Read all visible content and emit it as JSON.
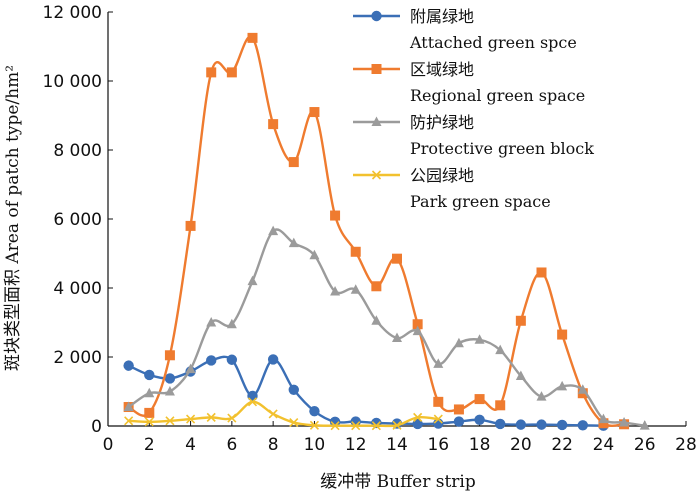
{
  "chart_data": {
    "type": "line",
    "xlabel": "缓冲带 Buffer strip",
    "ylabel": "斑块类型面积 Area of patch type/hm²",
    "xlim": [
      0,
      28
    ],
    "ylim": [
      0,
      12000
    ],
    "xticks": [
      0,
      2,
      4,
      6,
      8,
      10,
      12,
      14,
      16,
      18,
      20,
      22,
      24,
      26,
      28
    ],
    "yticks": [
      0,
      2000,
      4000,
      6000,
      8000,
      10000,
      12000
    ],
    "ytick_labels": [
      "0",
      "2 000",
      "4 000",
      "6 000",
      "8 000",
      "10 000",
      "12 000"
    ],
    "grid": false,
    "legend_position": "top-right",
    "series": [
      {
        "name_cn": "附属绿地",
        "name": "Attached green spce",
        "color": "#3b6fb6",
        "marker": "circle",
        "x": [
          1,
          2,
          3,
          4,
          5,
          6,
          7,
          8,
          9,
          10,
          11,
          12,
          13,
          14,
          15,
          16,
          17,
          18,
          19,
          20,
          21,
          22,
          23,
          24
        ],
        "values": [
          1750,
          1480,
          1380,
          1580,
          1900,
          1920,
          870,
          1930,
          1050,
          430,
          120,
          130,
          90,
          70,
          60,
          70,
          130,
          180,
          60,
          40,
          40,
          30,
          20,
          10
        ]
      },
      {
        "name_cn": "区域绿地",
        "name": "Regional green space",
        "color": "#ef7b2f",
        "marker": "square",
        "x": [
          1,
          2,
          3,
          4,
          5,
          6,
          7,
          8,
          9,
          10,
          11,
          12,
          13,
          14,
          15,
          16,
          17,
          18,
          19,
          20,
          21,
          22,
          23,
          24,
          25
        ],
        "values": [
          550,
          380,
          2050,
          5800,
          10250,
          10250,
          11250,
          8750,
          7650,
          9100,
          6100,
          5050,
          4050,
          4850,
          2950,
          700,
          480,
          780,
          600,
          3050,
          4450,
          2650,
          950,
          80,
          50
        ]
      },
      {
        "name_cn": "防护绿地",
        "name": "Protective green block",
        "color": "#9b9b9b",
        "marker": "triangle",
        "x": [
          1,
          2,
          3,
          4,
          5,
          6,
          7,
          8,
          9,
          10,
          11,
          12,
          13,
          14,
          15,
          16,
          17,
          18,
          19,
          20,
          21,
          22,
          23,
          24,
          25,
          26
        ],
        "values": [
          550,
          950,
          1000,
          1650,
          3000,
          2950,
          4200,
          5650,
          5300,
          4950,
          3900,
          3950,
          3050,
          2550,
          2750,
          1800,
          2400,
          2500,
          2200,
          1450,
          850,
          1150,
          1050,
          200,
          100,
          10
        ]
      },
      {
        "name_cn": "公园绿地",
        "name": "Park green space",
        "color": "#f2c12e",
        "marker": "x",
        "x": [
          1,
          2,
          3,
          4,
          5,
          6,
          7,
          8,
          9,
          10,
          11,
          12,
          13,
          14,
          15,
          16
        ],
        "values": [
          150,
          120,
          150,
          200,
          250,
          230,
          700,
          350,
          100,
          20,
          10,
          10,
          10,
          20,
          250,
          200
        ]
      }
    ]
  }
}
